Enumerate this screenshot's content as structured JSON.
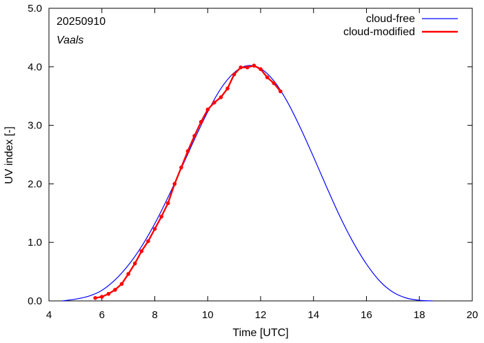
{
  "chart_data": {
    "type": "line",
    "xlabel": "Time  [UTC]",
    "ylabel": "UV index  [-]",
    "xlim": [
      4,
      20
    ],
    "ylim": [
      0,
      5
    ],
    "x_ticks": [
      4,
      6,
      8,
      10,
      12,
      14,
      16,
      18,
      20
    ],
    "y_ticks": [
      0.0,
      1.0,
      2.0,
      3.0,
      4.0,
      5.0
    ],
    "x_tick_labels": [
      "4",
      "6",
      "8",
      "10",
      "12",
      "14",
      "16",
      "18",
      "20"
    ],
    "y_tick_labels": [
      "0.0",
      "1.0",
      "2.0",
      "3.0",
      "4.0",
      "5.0"
    ],
    "grid": false,
    "legend_position": "top-right",
    "annotations": {
      "date": "20250910",
      "location": "Vaals"
    },
    "series": [
      {
        "name": "cloud-free",
        "color": "#0000ff",
        "x": [
          4.5,
          5.0,
          5.5,
          6.0,
          6.5,
          7.0,
          7.5,
          8.0,
          8.5,
          9.0,
          9.5,
          10.0,
          10.5,
          11.0,
          11.5,
          12.0,
          12.5,
          13.0,
          13.5,
          14.0,
          14.5,
          15.0,
          15.5,
          16.0,
          16.5,
          17.0,
          17.5,
          18.0,
          18.5
        ],
        "values": [
          0.0,
          0.03,
          0.08,
          0.18,
          0.36,
          0.61,
          0.93,
          1.32,
          1.77,
          2.26,
          2.76,
          3.23,
          3.63,
          3.9,
          4.02,
          3.97,
          3.76,
          3.41,
          2.96,
          2.46,
          1.94,
          1.44,
          1.0,
          0.63,
          0.34,
          0.15,
          0.05,
          0.01,
          0.0
        ]
      },
      {
        "name": "cloud-modified",
        "color": "#ff0000",
        "x": [
          5.75,
          6.0,
          6.25,
          6.5,
          6.75,
          7.0,
          7.25,
          7.5,
          7.75,
          8.0,
          8.25,
          8.5,
          8.75,
          9.0,
          9.25,
          9.5,
          9.75,
          10.0,
          10.25,
          10.5,
          10.75,
          11.0,
          11.25,
          11.5,
          11.75,
          12.0,
          12.25,
          12.5,
          12.75
        ],
        "values": [
          0.05,
          0.07,
          0.12,
          0.19,
          0.29,
          0.46,
          0.64,
          0.85,
          1.02,
          1.23,
          1.44,
          1.67,
          2.0,
          2.28,
          2.56,
          2.82,
          3.06,
          3.27,
          3.39,
          3.48,
          3.63,
          3.87,
          3.99,
          3.99,
          4.02,
          3.96,
          3.82,
          3.72,
          3.58
        ]
      }
    ]
  }
}
